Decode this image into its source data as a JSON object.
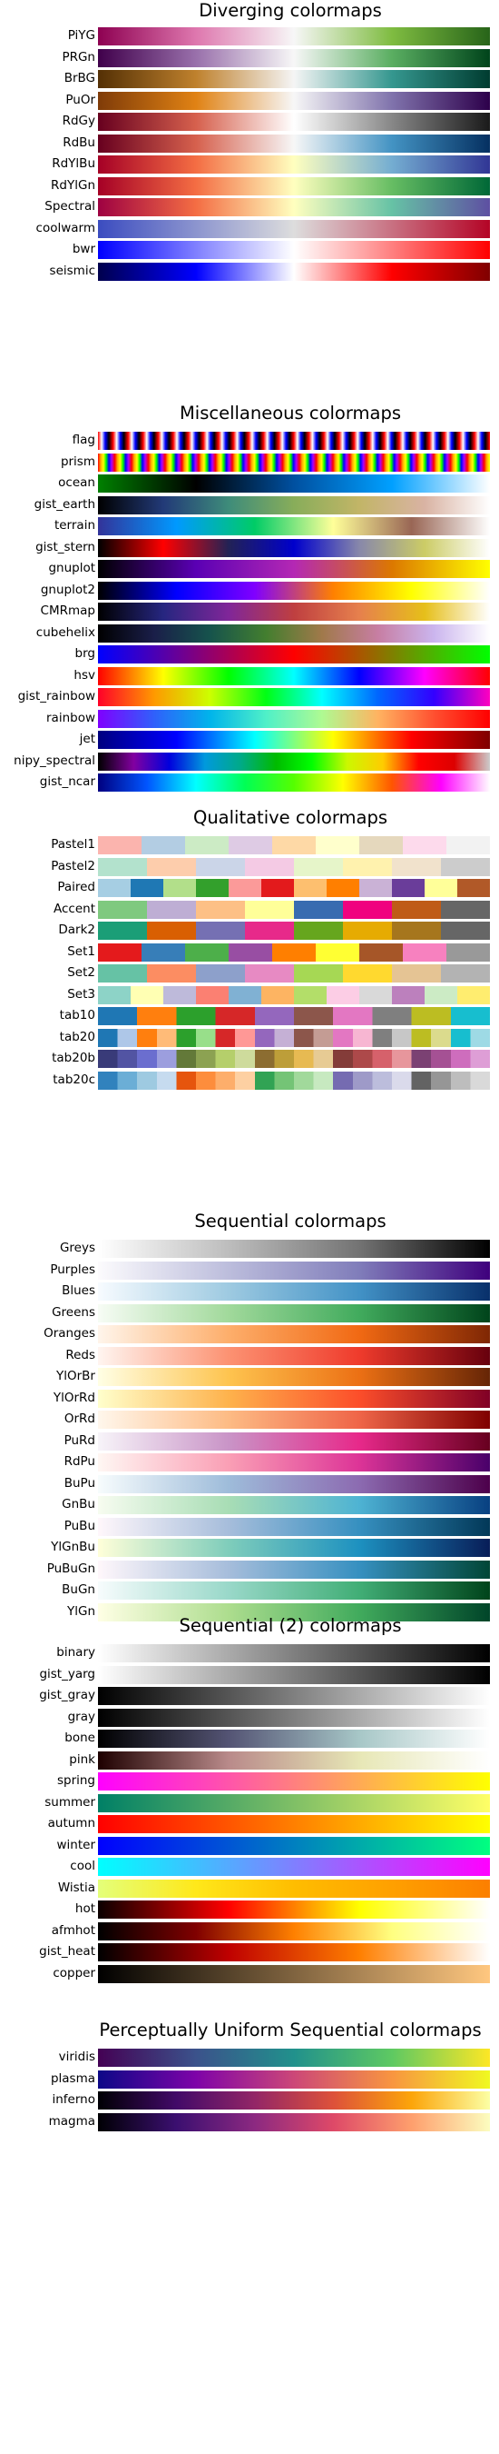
{
  "chart_data": [
    {
      "type": "colormap",
      "title": "Perceptually Uniform Sequential colormaps",
      "colormaps": [
        {
          "name": "viridis",
          "stops": [
            "#440154",
            "#3b528b",
            "#21918c",
            "#5ec962",
            "#fde725"
          ]
        },
        {
          "name": "plasma",
          "stops": [
            "#0d0887",
            "#7e03a8",
            "#cc4778",
            "#f89540",
            "#f0f921"
          ]
        },
        {
          "name": "inferno",
          "stops": [
            "#000004",
            "#420a68",
            "#932667",
            "#dd513a",
            "#fca50a",
            "#fcffa4"
          ]
        },
        {
          "name": "magma",
          "stops": [
            "#000004",
            "#3b0f70",
            "#8c2981",
            "#de4968",
            "#fe9f6d",
            "#fcfdbf"
          ]
        }
      ]
    },
    {
      "type": "colormap",
      "title": "Sequential colormaps",
      "colormaps": [
        {
          "name": "Greys",
          "stops": [
            "#ffffff",
            "#bdbdbd",
            "#737373",
            "#000000"
          ]
        },
        {
          "name": "Purples",
          "stops": [
            "#fcfbfd",
            "#bcbddc",
            "#807dba",
            "#3f007d"
          ]
        },
        {
          "name": "Blues",
          "stops": [
            "#f7fbff",
            "#9ecae1",
            "#4292c6",
            "#08306b"
          ]
        },
        {
          "name": "Greens",
          "stops": [
            "#f7fcf5",
            "#a1d99b",
            "#41ab5d",
            "#00441b"
          ]
        },
        {
          "name": "Oranges",
          "stops": [
            "#fff5eb",
            "#fdae6b",
            "#f16913",
            "#7f2704"
          ]
        },
        {
          "name": "Reds",
          "stops": [
            "#fff5f0",
            "#fc9272",
            "#ef3b2c",
            "#67000d"
          ]
        },
        {
          "name": "YlOrBr",
          "stops": [
            "#ffffe5",
            "#fec44f",
            "#ec7014",
            "#662506"
          ]
        },
        {
          "name": "YlOrRd",
          "stops": [
            "#ffffcc",
            "#feb24c",
            "#fc4e2a",
            "#800026"
          ]
        },
        {
          "name": "OrRd",
          "stops": [
            "#fff7ec",
            "#fdbb84",
            "#ef6548",
            "#7f0000"
          ]
        },
        {
          "name": "PuRd",
          "stops": [
            "#f7f4f9",
            "#c994c7",
            "#e7298a",
            "#67001f"
          ]
        },
        {
          "name": "RdPu",
          "stops": [
            "#fff7f3",
            "#fa9fb5",
            "#dd3497",
            "#49006a"
          ]
        },
        {
          "name": "BuPu",
          "stops": [
            "#f7fcfd",
            "#9ebcda",
            "#8c6bb1",
            "#4d004b"
          ]
        },
        {
          "name": "GnBu",
          "stops": [
            "#f7fcf0",
            "#a8ddb5",
            "#4eb3d3",
            "#084081"
          ]
        },
        {
          "name": "PuBu",
          "stops": [
            "#fff7fb",
            "#a6bddb",
            "#3690c0",
            "#023858"
          ]
        },
        {
          "name": "YlGnBu",
          "stops": [
            "#ffffd9",
            "#7fcdbb",
            "#1d91c0",
            "#081d58"
          ]
        },
        {
          "name": "PuBuGn",
          "stops": [
            "#fff7fb",
            "#a6bddb",
            "#3690c0",
            "#014636"
          ]
        },
        {
          "name": "BuGn",
          "stops": [
            "#f7fcfd",
            "#99d8c9",
            "#41ae76",
            "#00441b"
          ]
        },
        {
          "name": "YlGn",
          "stops": [
            "#ffffe5",
            "#addd8e",
            "#41ab5d",
            "#004529"
          ]
        }
      ]
    },
    {
      "type": "colormap",
      "title": "Sequential (2) colormaps",
      "colormaps": [
        {
          "name": "binary",
          "stops": [
            "#ffffff",
            "#000000"
          ]
        },
        {
          "name": "gist_yarg",
          "stops": [
            "#ffffff",
            "#000000"
          ]
        },
        {
          "name": "gist_gray",
          "stops": [
            "#000000",
            "#ffffff"
          ]
        },
        {
          "name": "gray",
          "stops": [
            "#000000",
            "#ffffff"
          ]
        },
        {
          "name": "bone",
          "stops": [
            "#000000",
            "#545474",
            "#a7c7c7",
            "#ffffff"
          ]
        },
        {
          "name": "pink",
          "stops": [
            "#1e0000",
            "#b98a8a",
            "#e7e7b6",
            "#ffffff"
          ]
        },
        {
          "name": "spring",
          "stops": [
            "#ff00ff",
            "#ffff00"
          ]
        },
        {
          "name": "summer",
          "stops": [
            "#008066",
            "#ffff66"
          ]
        },
        {
          "name": "autumn",
          "stops": [
            "#ff0000",
            "#ffff00"
          ]
        },
        {
          "name": "winter",
          "stops": [
            "#0000ff",
            "#00ff80"
          ]
        },
        {
          "name": "cool",
          "stops": [
            "#00ffff",
            "#ff00ff"
          ]
        },
        {
          "name": "Wistia",
          "stops": [
            "#e4ff7a",
            "#ffe81a",
            "#ffbd00",
            "#ffa000",
            "#fc7f00"
          ]
        },
        {
          "name": "hot",
          "stops": [
            "#0b0000",
            "#ff0000",
            "#ffff00",
            "#ffffff"
          ]
        },
        {
          "name": "afmhot",
          "stops": [
            "#000000",
            "#800000",
            "#ff8000",
            "#ffff80",
            "#ffffff"
          ]
        },
        {
          "name": "gist_heat",
          "stops": [
            "#000000",
            "#bf0000",
            "#ff7f00",
            "#ffffff"
          ]
        },
        {
          "name": "copper",
          "stops": [
            "#000000",
            "#ffc77f"
          ]
        }
      ]
    },
    {
      "type": "colormap",
      "title": "Diverging colormaps",
      "colormaps": [
        {
          "name": "PiYG",
          "stops": [
            "#8e0152",
            "#de77ae",
            "#f7f7f7",
            "#7fbc41",
            "#276419"
          ]
        },
        {
          "name": "PRGn",
          "stops": [
            "#40004b",
            "#9970ab",
            "#f7f7f7",
            "#5aae61",
            "#00441b"
          ]
        },
        {
          "name": "BrBG",
          "stops": [
            "#543005",
            "#bf812d",
            "#f5f5f5",
            "#35978f",
            "#003c30"
          ]
        },
        {
          "name": "PuOr",
          "stops": [
            "#7f3b08",
            "#e08214",
            "#f7f7f7",
            "#8073ac",
            "#2d004b"
          ]
        },
        {
          "name": "RdGy",
          "stops": [
            "#67001f",
            "#d6604d",
            "#ffffff",
            "#878787",
            "#1a1a1a"
          ]
        },
        {
          "name": "RdBu",
          "stops": [
            "#67001f",
            "#d6604d",
            "#f7f7f7",
            "#4393c3",
            "#053061"
          ]
        },
        {
          "name": "RdYlBu",
          "stops": [
            "#a50026",
            "#f46d43",
            "#ffffbf",
            "#74add1",
            "#313695"
          ]
        },
        {
          "name": "RdYlGn",
          "stops": [
            "#a50026",
            "#f46d43",
            "#ffffbf",
            "#66bd63",
            "#006837"
          ]
        },
        {
          "name": "Spectral",
          "stops": [
            "#9e0142",
            "#f46d43",
            "#ffffbf",
            "#66c2a5",
            "#5e4fa2"
          ]
        },
        {
          "name": "coolwarm",
          "stops": [
            "#3b4cc0",
            "#dddddd",
            "#b40426"
          ]
        },
        {
          "name": "bwr",
          "stops": [
            "#0000ff",
            "#ffffff",
            "#ff0000"
          ]
        },
        {
          "name": "seismic",
          "stops": [
            "#00004d",
            "#0000ff",
            "#ffffff",
            "#ff0000",
            "#800000"
          ]
        }
      ]
    },
    {
      "type": "colormap",
      "title": "Qualitative colormaps",
      "colormaps": [
        {
          "name": "Pastel1",
          "discrete": true,
          "stops": [
            "#fbb4ae",
            "#b3cde3",
            "#ccebc5",
            "#decbe4",
            "#fed9a6",
            "#ffffcc",
            "#e5d8bd",
            "#fddaec",
            "#f2f2f2"
          ]
        },
        {
          "name": "Pastel2",
          "discrete": true,
          "stops": [
            "#b3e2cd",
            "#fdcdac",
            "#cbd5e8",
            "#f4cae4",
            "#e6f5c9",
            "#fff2ae",
            "#f1e2cc",
            "#cccccc"
          ]
        },
        {
          "name": "Paired",
          "discrete": true,
          "stops": [
            "#a6cee3",
            "#1f78b4",
            "#b2df8a",
            "#33a02c",
            "#fb9a99",
            "#e31a1c",
            "#fdbf6f",
            "#ff7f00",
            "#cab2d6",
            "#6a3d9a",
            "#ffff99",
            "#b15928"
          ]
        },
        {
          "name": "Accent",
          "discrete": true,
          "stops": [
            "#7fc97f",
            "#beaed4",
            "#fdc086",
            "#ffff99",
            "#386cb0",
            "#f0027f",
            "#bf5b17",
            "#666666"
          ]
        },
        {
          "name": "Dark2",
          "discrete": true,
          "stops": [
            "#1b9e77",
            "#d95f02",
            "#7570b3",
            "#e7298a",
            "#66a61e",
            "#e6ab02",
            "#a6761d",
            "#666666"
          ]
        },
        {
          "name": "Set1",
          "discrete": true,
          "stops": [
            "#e41a1c",
            "#377eb8",
            "#4daf4a",
            "#984ea3",
            "#ff7f00",
            "#ffff33",
            "#a65628",
            "#f781bf",
            "#999999"
          ]
        },
        {
          "name": "Set2",
          "discrete": true,
          "stops": [
            "#66c2a5",
            "#fc8d62",
            "#8da0cb",
            "#e78ac3",
            "#a6d854",
            "#ffd92f",
            "#e5c494",
            "#b3b3b3"
          ]
        },
        {
          "name": "Set3",
          "discrete": true,
          "stops": [
            "#8dd3c7",
            "#ffffb3",
            "#bebada",
            "#fb8072",
            "#80b1d3",
            "#fdb462",
            "#b3de69",
            "#fccde5",
            "#d9d9d9",
            "#bc80bd",
            "#ccebc5",
            "#ffed6f"
          ]
        },
        {
          "name": "tab10",
          "discrete": true,
          "stops": [
            "#1f77b4",
            "#ff7f0e",
            "#2ca02c",
            "#d62728",
            "#9467bd",
            "#8c564b",
            "#e377c2",
            "#7f7f7f",
            "#bcbd22",
            "#17becf"
          ]
        },
        {
          "name": "tab20",
          "discrete": true,
          "stops": [
            "#1f77b4",
            "#aec7e8",
            "#ff7f0e",
            "#ffbb78",
            "#2ca02c",
            "#98df8a",
            "#d62728",
            "#ff9896",
            "#9467bd",
            "#c5b0d5",
            "#8c564b",
            "#c49c94",
            "#e377c2",
            "#f7b6d2",
            "#7f7f7f",
            "#c7c7c7",
            "#bcbd22",
            "#dbdb8d",
            "#17becf",
            "#9edae5"
          ]
        },
        {
          "name": "tab20b",
          "discrete": true,
          "stops": [
            "#393b79",
            "#5254a3",
            "#6b6ecf",
            "#9c9ede",
            "#637939",
            "#8ca252",
            "#b5cf6b",
            "#cedb9c",
            "#8c6d31",
            "#bd9e39",
            "#e7ba52",
            "#e7cb94",
            "#843c39",
            "#ad494a",
            "#d6616b",
            "#e7969c",
            "#7b4173",
            "#a55194",
            "#ce6dbd",
            "#de9ed6"
          ]
        },
        {
          "name": "tab20c",
          "discrete": true,
          "stops": [
            "#3182bd",
            "#6baed6",
            "#9ecae1",
            "#c6dbef",
            "#e6550d",
            "#fd8d3c",
            "#fdae6b",
            "#fdd0a2",
            "#31a354",
            "#74c476",
            "#a1d99b",
            "#c7e9c0",
            "#756bb1",
            "#9e9ac8",
            "#bcbddc",
            "#dadaeb",
            "#636363",
            "#969696",
            "#bdbdbd",
            "#d9d9d9"
          ]
        }
      ]
    },
    {
      "type": "colormap",
      "title": "Miscellaneous colormaps",
      "colormaps": [
        {
          "name": "flag",
          "pattern": "flag",
          "stops": [
            "#ff0000",
            "#ffffff",
            "#0000ff",
            "#000000"
          ]
        },
        {
          "name": "prism",
          "pattern": "prism",
          "stops": [
            "#ff0000",
            "#ffaa00",
            "#ffff00",
            "#00ff00",
            "#0000ff",
            "#aa00ff"
          ]
        },
        {
          "name": "ocean",
          "stops": [
            "#008000",
            "#000000",
            "#0050a0",
            "#00a0ff",
            "#ffffff"
          ]
        },
        {
          "name": "gist_earth",
          "stops": [
            "#000000",
            "#223a78",
            "#3e8c7a",
            "#88ad5a",
            "#c2b567",
            "#d9b3a3",
            "#ffffff"
          ]
        },
        {
          "name": "terrain",
          "stops": [
            "#333399",
            "#0099ff",
            "#00cc66",
            "#ffff99",
            "#996655",
            "#ffffff"
          ]
        },
        {
          "name": "gist_stern",
          "stops": [
            "#000000",
            "#ff0000",
            "#222255",
            "#0000cc",
            "#8888aa",
            "#cccc66",
            "#ffffff"
          ]
        },
        {
          "name": "gnuplot",
          "stops": [
            "#000000",
            "#5a00b4",
            "#b428b4",
            "#dc7800",
            "#ffff00"
          ]
        },
        {
          "name": "gnuplot2",
          "stops": [
            "#000000",
            "#0000ff",
            "#8000ff",
            "#ff8000",
            "#ffff00",
            "#ffffff"
          ]
        },
        {
          "name": "CMRmap",
          "stops": [
            "#000000",
            "#262680",
            "#802699",
            "#bf3f40",
            "#e6804d",
            "#e6bf1a",
            "#ffffff"
          ]
        },
        {
          "name": "cubehelix",
          "stops": [
            "#000000",
            "#1a1e49",
            "#16534c",
            "#437e2f",
            "#a0794a",
            "#c77ea3",
            "#cbb5ee",
            "#ffffff"
          ]
        },
        {
          "name": "brg",
          "stops": [
            "#0000ff",
            "#ff0000",
            "#00ff00"
          ]
        },
        {
          "name": "hsv",
          "stops": [
            "#ff0000",
            "#ffff00",
            "#00ff00",
            "#00ffff",
            "#0000ff",
            "#ff00ff",
            "#ff0000"
          ]
        },
        {
          "name": "gist_rainbow",
          "stops": [
            "#ff0029",
            "#ff9900",
            "#ccff00",
            "#00ff14",
            "#00ffff",
            "#0066ff",
            "#3300ff",
            "#ff00bf"
          ]
        },
        {
          "name": "rainbow",
          "stops": [
            "#8000ff",
            "#3060fb",
            "#00b4eb",
            "#4ff0c8",
            "#aefa92",
            "#ffb361",
            "#ff5030",
            "#ff0000"
          ]
        },
        {
          "name": "jet",
          "stops": [
            "#00007f",
            "#0000ff",
            "#00ffff",
            "#ffff00",
            "#ff0000",
            "#7f0000"
          ]
        },
        {
          "name": "nipy_spectral",
          "stops": [
            "#000000",
            "#8200a0",
            "#0000dd",
            "#0099dd",
            "#00aa88",
            "#00bb00",
            "#00ff00",
            "#ccf800",
            "#ffcc00",
            "#ff0000",
            "#dd0000",
            "#cccccc"
          ]
        },
        {
          "name": "gist_ncar",
          "stops": [
            "#000080",
            "#0055ff",
            "#00ffff",
            "#00ff55",
            "#55ff00",
            "#ffff00",
            "#ff5500",
            "#ff00ff",
            "#fffdff"
          ]
        }
      ]
    }
  ]
}
